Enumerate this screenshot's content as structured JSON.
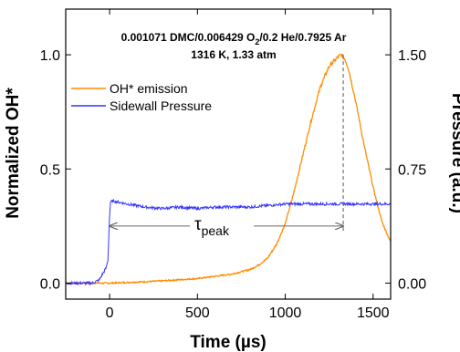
{
  "chart_data": {
    "type": "line",
    "title_line1_prefix": "0.001071 DMC/0.006429 O",
    "title_line1_sub": "2",
    "title_line1_suffix": "/0.2 He/0.7925 Ar",
    "title_line2": "1316 K, 1.33 atm",
    "xlabel": "Time (µs)",
    "ylabel_left": "Normalized OH*",
    "ylabel_right": "Pressure (a.u.)",
    "xlim": [
      -250,
      1600
    ],
    "ylim_left": [
      -0.07,
      1.2
    ],
    "ylim_right": [
      -0.105,
      1.8
    ],
    "x_ticks": [
      0,
      500,
      1000,
      1500
    ],
    "x_tick_labels": [
      "0",
      "500",
      "1000",
      "1500"
    ],
    "y_left_ticks": [
      0.0,
      0.5,
      1.0
    ],
    "y_left_tick_labels": [
      "0.0",
      "0.5",
      "1.0"
    ],
    "y_right_ticks": [
      0.0,
      0.75,
      1.5
    ],
    "y_right_tick_labels": [
      "0.00",
      "0.75",
      "1.50"
    ],
    "legend_position": "top-left",
    "grid": false,
    "series": [
      {
        "name": "OH* emission",
        "axis": "left",
        "color": "#ff8c00",
        "x": [
          -250,
          -100,
          0,
          100,
          200,
          300,
          400,
          500,
          600,
          700,
          800,
          850,
          900,
          950,
          1000,
          1050,
          1100,
          1150,
          1200,
          1250,
          1300,
          1320,
          1340,
          1360,
          1400,
          1450,
          1500,
          1550,
          1600
        ],
        "y": [
          0.0,
          0.0,
          0.0,
          0.003,
          0.006,
          0.01,
          0.015,
          0.02,
          0.03,
          0.04,
          0.06,
          0.08,
          0.11,
          0.17,
          0.26,
          0.4,
          0.56,
          0.72,
          0.86,
          0.95,
          0.99,
          1.0,
          0.98,
          0.94,
          0.8,
          0.6,
          0.42,
          0.27,
          0.18
        ]
      },
      {
        "name": "Sidewall Pressure",
        "axis": "right",
        "color": "#3333ff",
        "x": [
          -250,
          -100,
          -60,
          -40,
          -20,
          -10,
          0,
          5,
          20,
          100,
          200,
          300,
          400,
          500,
          600,
          700,
          800,
          900,
          1000,
          1100,
          1200,
          1300,
          1400,
          1500,
          1600
        ],
        "y": [
          0.0,
          0.0,
          0.02,
          0.06,
          0.1,
          0.15,
          0.45,
          0.53,
          0.54,
          0.52,
          0.5,
          0.49,
          0.5,
          0.49,
          0.5,
          0.5,
          0.5,
          0.51,
          0.52,
          0.52,
          0.52,
          0.52,
          0.52,
          0.52,
          0.52
        ]
      }
    ],
    "annotations": [
      {
        "text": "τ",
        "sub": "peak",
        "x_start": 0,
        "x_end": 1330,
        "y": 0.25,
        "peak_x": 1330,
        "peak_y": 1.0
      }
    ]
  }
}
